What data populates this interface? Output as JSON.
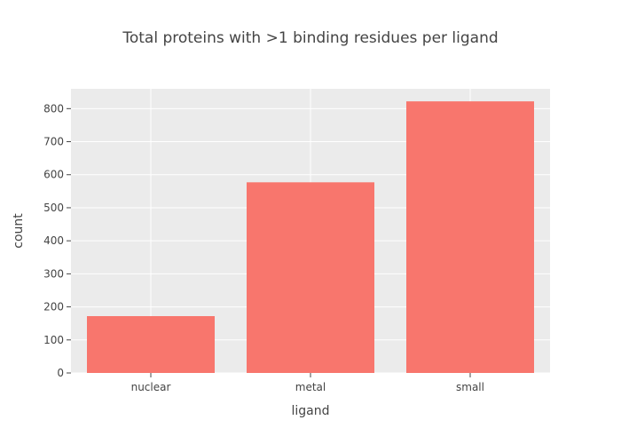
{
  "chart_data": {
    "type": "bar",
    "title": "Total proteins with >1 binding residues per ligand",
    "xlabel": "ligand",
    "ylabel": "count",
    "categories": [
      "nuclear",
      "metal",
      "small"
    ],
    "values": [
      172,
      577,
      822
    ],
    "ylim": [
      0,
      860
    ],
    "yticks": [
      0,
      100,
      200,
      300,
      400,
      500,
      600,
      700,
      800
    ],
    "grid": true,
    "colors": {
      "bar": "#F8766D",
      "panel": "#EBEBEB",
      "grid": "#FFFFFF"
    }
  }
}
